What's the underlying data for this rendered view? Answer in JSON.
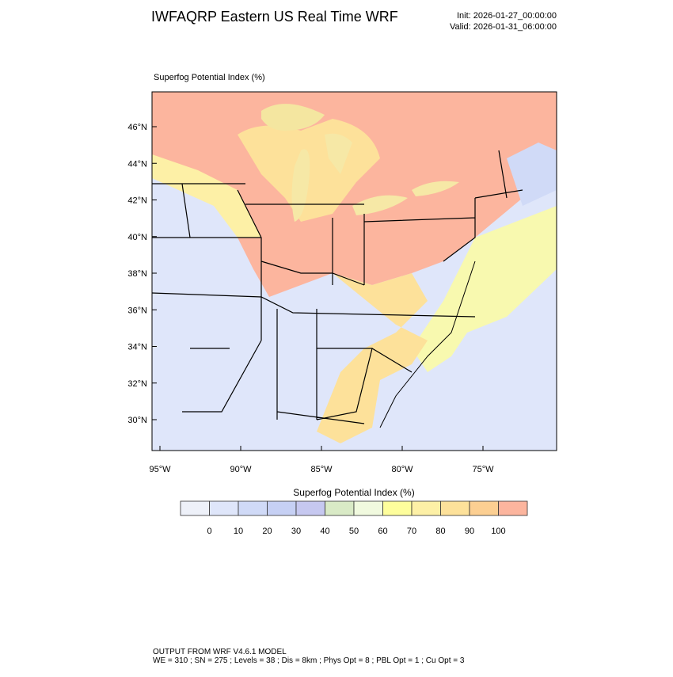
{
  "header": {
    "title": "IWFAQRP Eastern US Real Time WRF",
    "init": "Init: 2026-01-27_00:00:00",
    "valid": "Valid: 2026-01-31_06:00:00"
  },
  "map": {
    "label": "Superfog Potential Index   (%)",
    "lat_labels": [
      "46°N",
      "44°N",
      "42°N",
      "40°N",
      "38°N",
      "36°N",
      "34°N",
      "32°N",
      "30°N"
    ],
    "lon_labels": [
      "95°W",
      "90°W",
      "85°W",
      "80°W",
      "75°W"
    ]
  },
  "colorbar": {
    "title": "Superfog Potential Index  (%)",
    "ticks": [
      0,
      10,
      20,
      30,
      40,
      50,
      60,
      70,
      80,
      90,
      100
    ],
    "colors": [
      "#eef1f9",
      "#dfe6fa",
      "#d0daf7",
      "#c6d0f4",
      "#c6c8f0",
      "#d9eac6",
      "#f1fadf",
      "#fefe9c",
      "#fdf0a6",
      "#fde19a",
      "#fccf92",
      "#fcb59e"
    ]
  },
  "footer": {
    "line1": "OUTPUT FROM WRF V4.6.1 MODEL",
    "line2": "WE = 310 ; SN = 275 ; Levels = 38 ; Dis = 8km ; Phys Opt = 8 ; PBL Opt = 1 ; Cu Opt = 3"
  }
}
